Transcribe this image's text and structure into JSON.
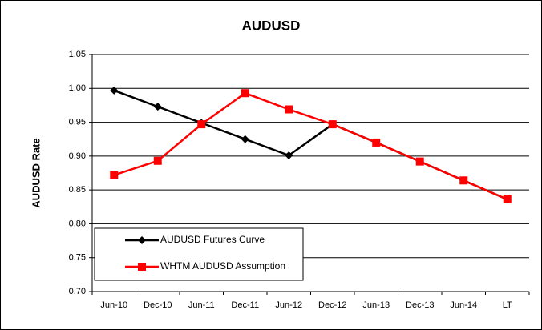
{
  "chart_data": {
    "type": "line",
    "title": "AUDUSD",
    "y_label": "AUDUSD Rate",
    "categories": [
      "Jun-10",
      "Dec-10",
      "Jun-11",
      "Dec-11",
      "Jun-12",
      "Dec-12",
      "Jun-13",
      "Dec-13",
      "Jun-14",
      "LT"
    ],
    "series": [
      {
        "name": "AUDUSD Futures Curve",
        "color": "#000000",
        "marker": "diamond",
        "values": [
          0.997,
          0.973,
          0.949,
          0.925,
          0.901,
          0.947,
          0.92,
          0.892,
          0.864,
          0.836
        ]
      },
      {
        "name": "WHTM AUDUSD Assumption",
        "color": "#ff0000",
        "marker": "square",
        "values": [
          0.872,
          0.893,
          0.947,
          0.993,
          0.969,
          0.947,
          0.92,
          0.892,
          0.864,
          0.836
        ]
      }
    ],
    "ylim": [
      0.7,
      1.05
    ],
    "yticks": [
      {
        "value": 0.7,
        "label": "0.70"
      },
      {
        "value": 0.75,
        "label": "0.75"
      },
      {
        "value": 0.8,
        "label": "0.80"
      },
      {
        "value": 0.85,
        "label": "0.85"
      },
      {
        "value": 0.9,
        "label": "0.90"
      },
      {
        "value": 0.95,
        "label": "0.95"
      },
      {
        "value": 1.0,
        "label": "1.00"
      },
      {
        "value": 1.05,
        "label": "1.05"
      }
    ],
    "grid": true,
    "legend": "lower left"
  }
}
